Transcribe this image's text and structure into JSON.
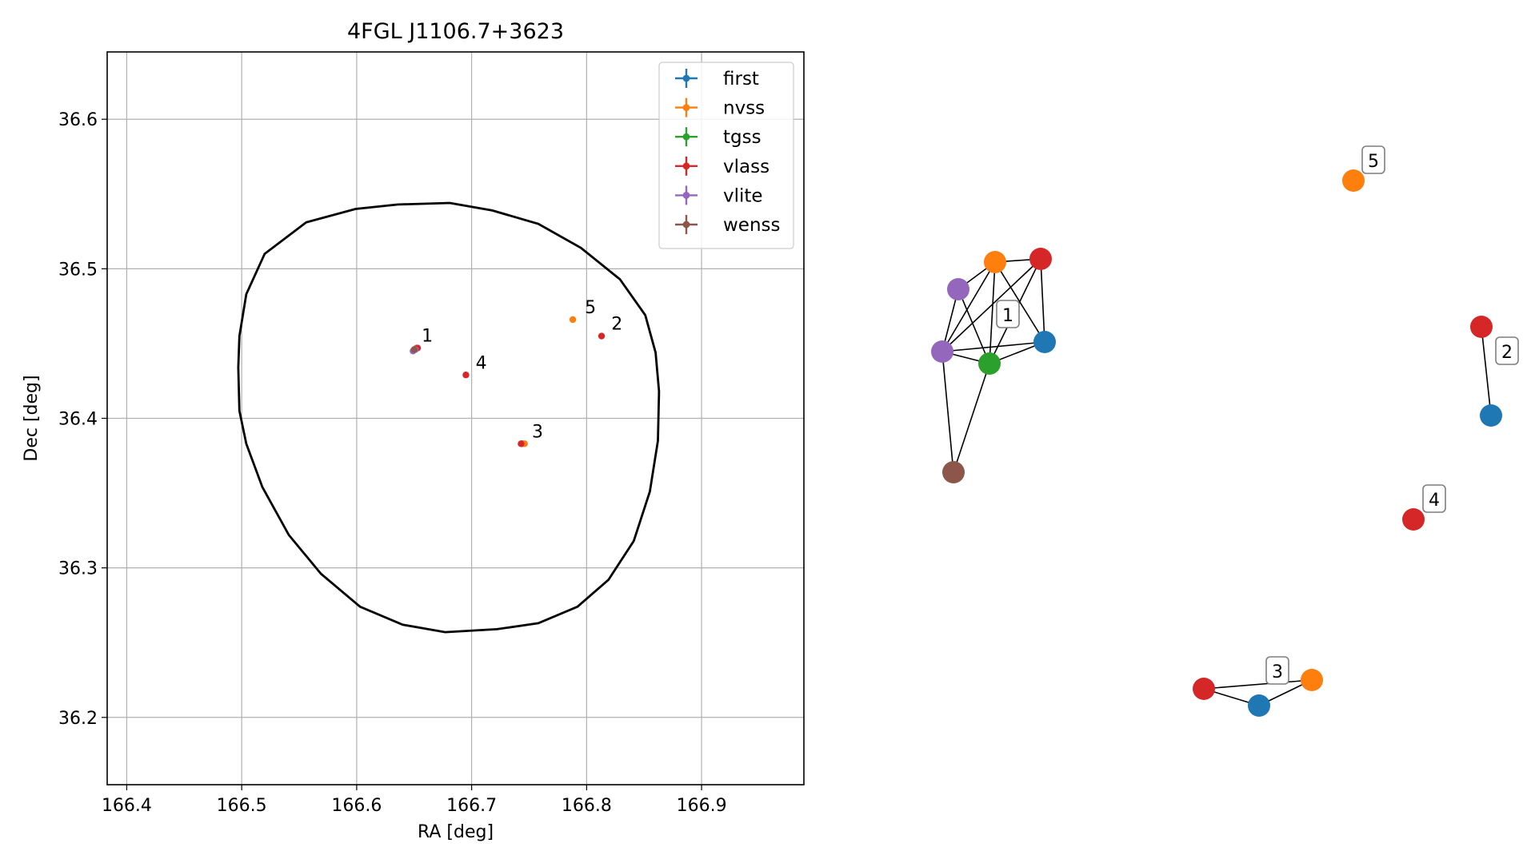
{
  "chart_data": [
    {
      "type": "scatter",
      "title": "4FGL J1106.7+3623",
      "xlabel": "RA [deg]",
      "ylabel": "Dec [deg]",
      "xlim": [
        166.383,
        166.989
      ],
      "ylim": [
        36.155,
        36.645
      ],
      "xticks": [
        166.4,
        166.5,
        166.6,
        166.7,
        166.8,
        166.9
      ],
      "xtick_labels": [
        "166.4",
        "166.5",
        "166.6",
        "166.7",
        "166.8",
        "166.9"
      ],
      "yticks": [
        36.2,
        36.3,
        36.4,
        36.5,
        36.6
      ],
      "ytick_labels": [
        "36.2",
        "36.3",
        "36.4",
        "36.5",
        "36.6"
      ],
      "grid": true,
      "legend_position": "top-right",
      "series": [
        {
          "name": "first",
          "color": "#1f77b4",
          "points": [
            [
              166.652,
              36.447
            ],
            [
              166.744,
              36.383
            ]
          ]
        },
        {
          "name": "nvss",
          "color": "#ff7f0e",
          "points": [
            [
              166.652,
              36.447
            ],
            [
              166.788,
              36.466
            ],
            [
              166.746,
              36.383
            ]
          ]
        },
        {
          "name": "tgss",
          "color": "#2ca02c",
          "points": [
            [
              166.651,
              36.446
            ]
          ]
        },
        {
          "name": "vlass",
          "color": "#d62728",
          "points": [
            [
              166.653,
              36.447
            ],
            [
              166.813,
              36.455
            ],
            [
              166.743,
              36.383
            ],
            [
              166.695,
              36.429
            ]
          ]
        },
        {
          "name": "vlite",
          "color": "#9467bd",
          "points": [
            [
              166.649,
              36.445
            ],
            [
              166.651,
              36.446
            ]
          ]
        },
        {
          "name": "wenss",
          "color": "#8c564b",
          "points": [
            [
              166.65,
              36.446
            ]
          ]
        }
      ],
      "annotations": [
        {
          "text": "1",
          "x": 166.653,
          "y": 36.448
        },
        {
          "text": "5",
          "x": 166.795,
          "y": 36.467
        },
        {
          "text": "2",
          "x": 166.818,
          "y": 36.456
        },
        {
          "text": "4",
          "x": 166.7,
          "y": 36.43
        },
        {
          "text": "3",
          "x": 166.749,
          "y": 36.384
        }
      ],
      "ellipse": {
        "center": [
          166.689,
          36.399
        ],
        "points": [
          [
            166.636,
            36.543
          ],
          [
            166.599,
            36.54
          ],
          [
            166.556,
            36.531
          ],
          [
            166.52,
            36.51
          ],
          [
            166.504,
            36.483
          ],
          [
            166.498,
            36.455
          ],
          [
            166.497,
            36.434
          ],
          [
            166.498,
            36.405
          ],
          [
            166.504,
            36.383
          ],
          [
            166.518,
            36.354
          ],
          [
            166.541,
            36.322
          ],
          [
            166.569,
            36.296
          ],
          [
            166.603,
            36.274
          ],
          [
            166.64,
            36.262
          ],
          [
            166.677,
            36.257
          ],
          [
            166.722,
            36.259
          ],
          [
            166.758,
            36.263
          ],
          [
            166.792,
            36.274
          ],
          [
            166.819,
            36.292
          ],
          [
            166.841,
            36.318
          ],
          [
            166.855,
            36.351
          ],
          [
            166.862,
            36.385
          ],
          [
            166.863,
            36.418
          ],
          [
            166.86,
            36.444
          ],
          [
            166.851,
            36.469
          ],
          [
            166.829,
            36.493
          ],
          [
            166.795,
            36.514
          ],
          [
            166.758,
            36.53
          ],
          [
            166.718,
            36.539
          ],
          [
            166.681,
            36.544
          ],
          [
            166.636,
            36.543
          ]
        ]
      }
    },
    {
      "type": "network",
      "nodes": [
        {
          "id": "n1",
          "color": "#ff7f0e"
        },
        {
          "id": "n2",
          "color": "#d62728"
        },
        {
          "id": "n3",
          "color": "#9467bd"
        },
        {
          "id": "n4",
          "color": "#1f77b4"
        },
        {
          "id": "n5",
          "color": "#9467bd"
        },
        {
          "id": "n6",
          "color": "#2ca02c"
        },
        {
          "id": "n7",
          "color": "#8c564b"
        },
        {
          "id": "n8",
          "color": "#ff7f0e"
        },
        {
          "id": "n9",
          "color": "#d62728"
        },
        {
          "id": "n10",
          "color": "#1f77b4"
        },
        {
          "id": "n11",
          "color": "#d62728"
        },
        {
          "id": "n12",
          "color": "#d62728"
        },
        {
          "id": "n13",
          "color": "#1f77b4"
        },
        {
          "id": "n14",
          "color": "#ff7f0e"
        }
      ],
      "edges": [
        [
          "n1",
          "n2"
        ],
        [
          "n1",
          "n4"
        ],
        [
          "n1",
          "n5"
        ],
        [
          "n1",
          "n6"
        ],
        [
          "n1",
          "n3"
        ],
        [
          "n2",
          "n5"
        ],
        [
          "n2",
          "n6"
        ],
        [
          "n2",
          "n4"
        ],
        [
          "n3",
          "n6"
        ],
        [
          "n3",
          "n5"
        ],
        [
          "n4",
          "n6"
        ],
        [
          "n4",
          "n5"
        ],
        [
          "n5",
          "n6"
        ],
        [
          "n5",
          "n7"
        ],
        [
          "n6",
          "n7"
        ],
        [
          "n9",
          "n10"
        ],
        [
          "n12",
          "n13"
        ],
        [
          "n12",
          "n14"
        ],
        [
          "n13",
          "n14"
        ]
      ],
      "group_labels": [
        "1",
        "2",
        "3",
        "4",
        "5"
      ]
    }
  ]
}
